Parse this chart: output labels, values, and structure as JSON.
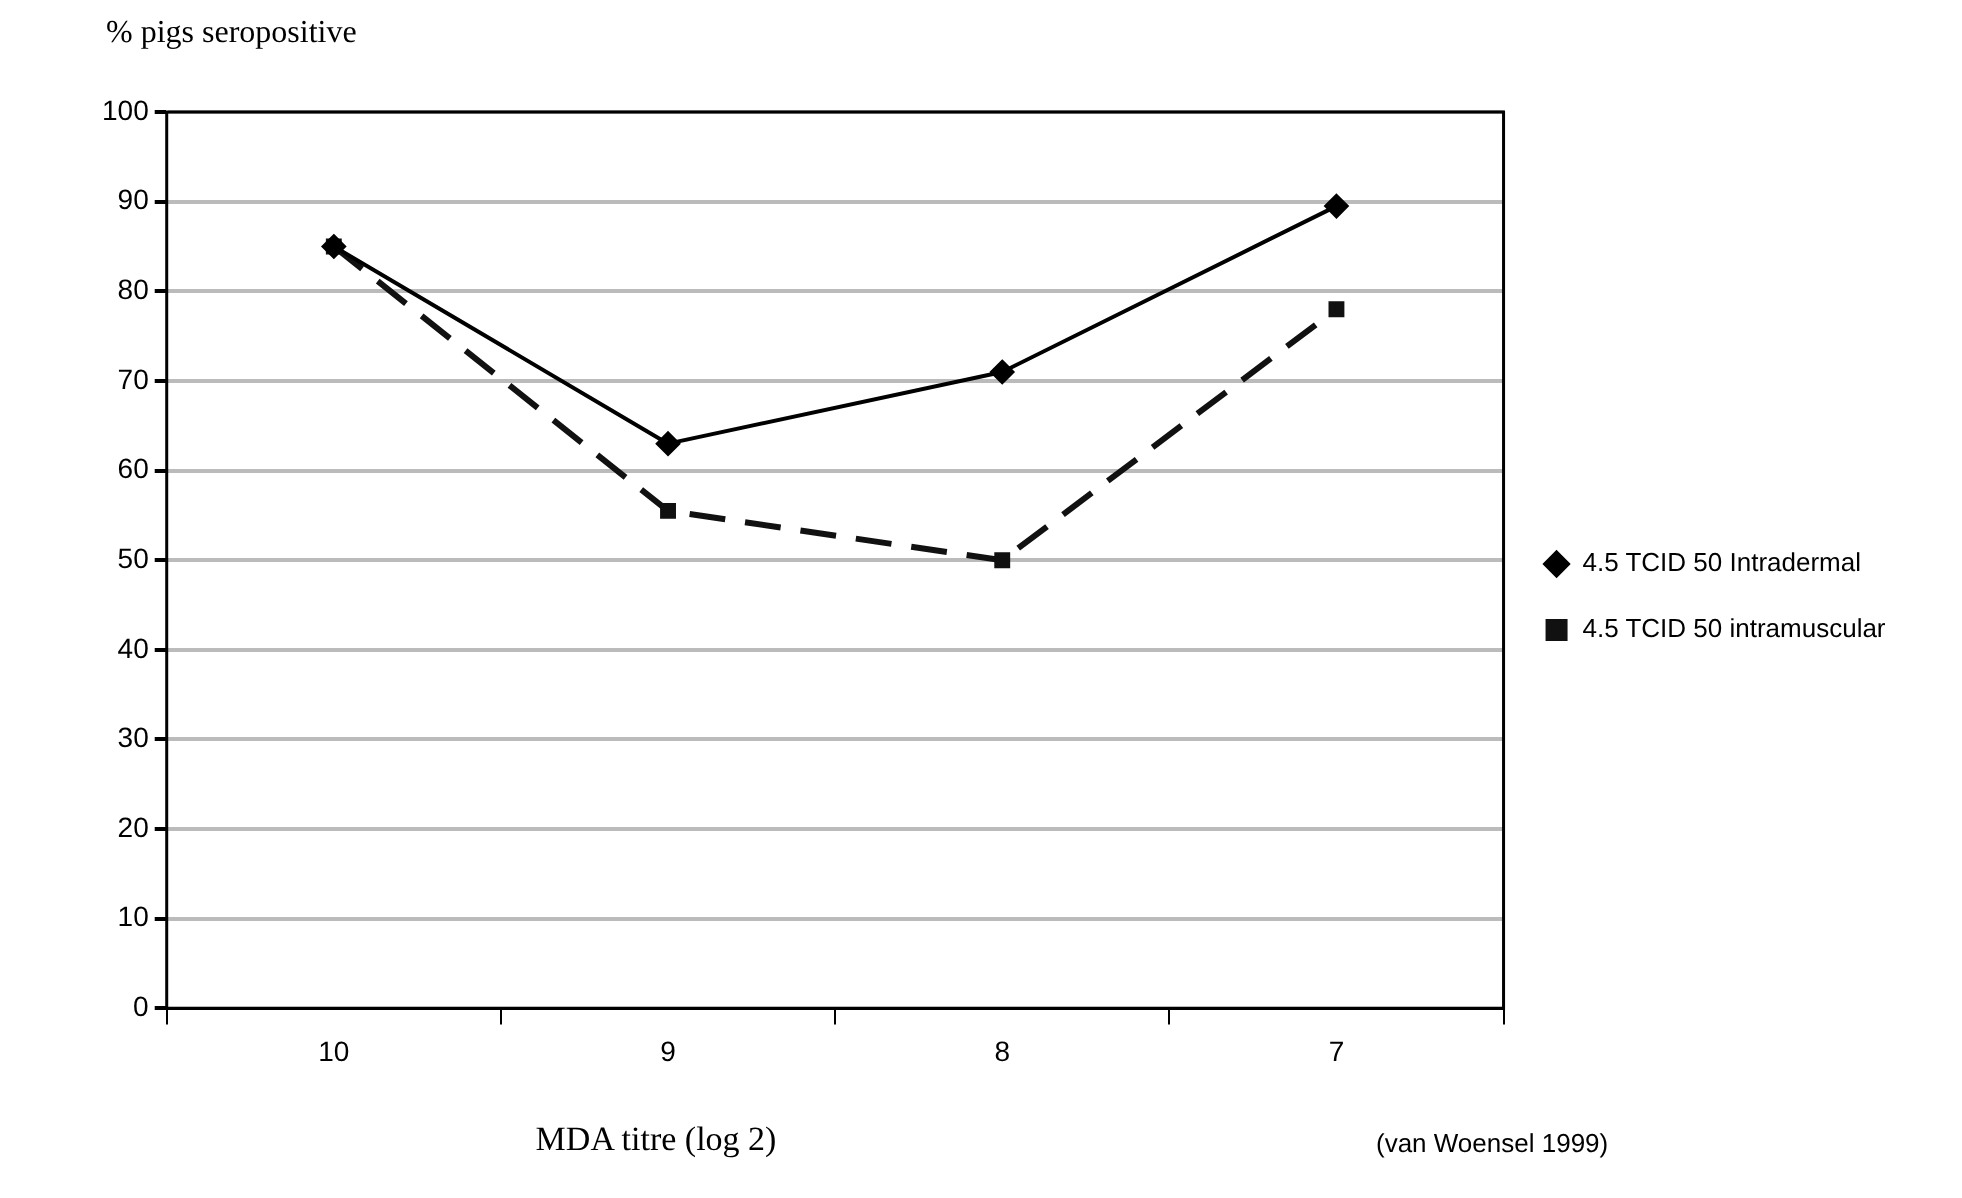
{
  "chart_data": {
    "type": "line",
    "ylabel": "% pigs seropositive",
    "xlabel": "MDA titre (log 2)",
    "annotations": [
      "(van Woensel 1999)"
    ],
    "categories": [
      "10",
      "9",
      "8",
      "7"
    ],
    "series": [
      {
        "name": "4.5 TCID 50 Intradermal",
        "color": "#000000",
        "values": [
          85,
          63,
          71,
          89.5
        ],
        "marker": "diamond",
        "line_style": "solid"
      },
      {
        "name": "4.5 TCID 50 intramuscular",
        "color": "#111111",
        "values": [
          85,
          55.5,
          50,
          78
        ],
        "marker": "square",
        "line_style": "dashed"
      }
    ],
    "ylim": [
      0,
      100
    ],
    "yticks": [
      0,
      10,
      20,
      30,
      40,
      50,
      60,
      70,
      80,
      90,
      100
    ],
    "grid": "y",
    "legend": "right"
  }
}
